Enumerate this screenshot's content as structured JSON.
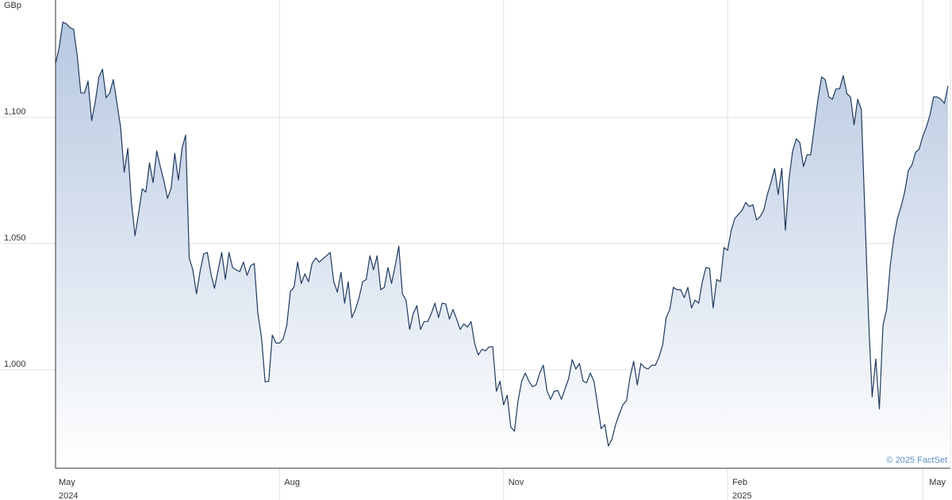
{
  "chart_data": {
    "type": "area",
    "unit_label": "GBp",
    "credit": "© 2025 FactSet",
    "ylim": [
      961,
      1146.5
    ],
    "yticks": [
      {
        "value": 1000,
        "label": "1,000"
      },
      {
        "value": 1050,
        "label": "1,050"
      },
      {
        "value": 1100,
        "label": "1,100"
      }
    ],
    "xlim": [
      0,
      247
    ],
    "xticks": [
      {
        "value": 0,
        "label": "May",
        "year": "2024"
      },
      {
        "value": 62,
        "label": "Aug"
      },
      {
        "value": 124,
        "label": "Nov"
      },
      {
        "value": 186,
        "label": "Feb",
        "year": "2025"
      },
      {
        "value": 240,
        "label": "May"
      }
    ],
    "grid": true,
    "series": [
      {
        "color": "#1f3a5f",
        "fill": "#b4c5df",
        "values": [
          1121.3,
          1127.6,
          1137.7,
          1137.1,
          1135.5,
          1134.9,
          1124.5,
          1109.7,
          1109.7,
          1114.4,
          1098.7,
          1106.2,
          1116.0,
          1119.1,
          1107.8,
          1109.7,
          1115.0,
          1105.6,
          1096.2,
          1078.3,
          1087.7,
          1066.3,
          1053.1,
          1062.2,
          1071.7,
          1070.4,
          1082.0,
          1074.2,
          1086.7,
          1080.5,
          1074.8,
          1067.9,
          1072.0,
          1085.8,
          1075.1,
          1087.7,
          1093.0,
          1044.3,
          1039.6,
          1030.1,
          1038.9,
          1045.9,
          1046.5,
          1038.0,
          1032.3,
          1039.6,
          1046.5,
          1035.8,
          1046.5,
          1040.5,
          1039.6,
          1038.9,
          1042.7,
          1037.4,
          1041.2,
          1042.1,
          1022.3,
          1012.8,
          995.2,
          995.5,
          1013.8,
          1010.6,
          1010.6,
          1012.2,
          1017.6,
          1031.1,
          1032.7,
          1042.7,
          1034.2,
          1038.0,
          1034.9,
          1042.1,
          1044.3,
          1042.7,
          1044.0,
          1045.2,
          1046.5,
          1034.9,
          1030.8,
          1038.6,
          1026.4,
          1034.9,
          1020.7,
          1023.9,
          1028.6,
          1034.9,
          1035.8,
          1045.2,
          1039.6,
          1045.2,
          1031.7,
          1032.7,
          1040.5,
          1034.2,
          1041.2,
          1049.0,
          1030.1,
          1027.6,
          1016.0,
          1022.3,
          1025.4,
          1016.0,
          1019.1,
          1019.1,
          1022.3,
          1026.4,
          1020.7,
          1026.4,
          1026.1,
          1020.1,
          1023.9,
          1020.1,
          1016.0,
          1018.2,
          1016.9,
          1019.1,
          1010.3,
          1005.9,
          1008.1,
          1007.5,
          1009.1,
          1009.1,
          991.5,
          995.5,
          986.1,
          989.9,
          977.3,
          975.7,
          987.7,
          995.5,
          998.7,
          995.5,
          993.3,
          994.0,
          998.7,
          1001.8,
          991.8,
          988.3,
          991.5,
          991.8,
          988.3,
          992.4,
          996.5,
          1004.0,
          1000.3,
          1002.5,
          995.5,
          994.9,
          998.7,
          995.5,
          986.1,
          976.7,
          978.3,
          969.8,
          972.6,
          978.3,
          982.3,
          986.1,
          987.7,
          997.1,
          1003.4,
          994.0,
          1002.5,
          1000.9,
          1000.3,
          1001.8,
          1001.8,
          1005.0,
          1009.7,
          1020.7,
          1023.9,
          1032.7,
          1031.7,
          1031.7,
          1028.6,
          1032.7,
          1024.5,
          1027.6,
          1026.4,
          1034.9,
          1040.5,
          1040.2,
          1024.5,
          1035.8,
          1034.9,
          1048.4,
          1047.4,
          1055.3,
          1060.0,
          1061.6,
          1063.2,
          1066.3,
          1064.7,
          1065.4,
          1059.4,
          1060.7,
          1063.2,
          1069.5,
          1074.2,
          1079.8,
          1069.5,
          1079.8,
          1055.3,
          1075.7,
          1086.7,
          1091.5,
          1089.9,
          1080.5,
          1085.2,
          1085.2,
          1096.2,
          1107.2,
          1116.0,
          1115.0,
          1108.1,
          1107.2,
          1111.3,
          1111.3,
          1116.6,
          1109.4,
          1108.1,
          1097.1,
          1107.2,
          1103.1,
          1061.6,
          1020.7,
          989.3,
          1004.3,
          984.5,
          1017.6,
          1023.9,
          1041.2,
          1052.2,
          1060.0,
          1064.7,
          1070.4,
          1078.9,
          1081.1,
          1086.1,
          1087.4,
          1092.4,
          1096.2,
          1100.9,
          1108.1,
          1108.1,
          1107.2,
          1105.6,
          1112.5
        ]
      }
    ]
  }
}
